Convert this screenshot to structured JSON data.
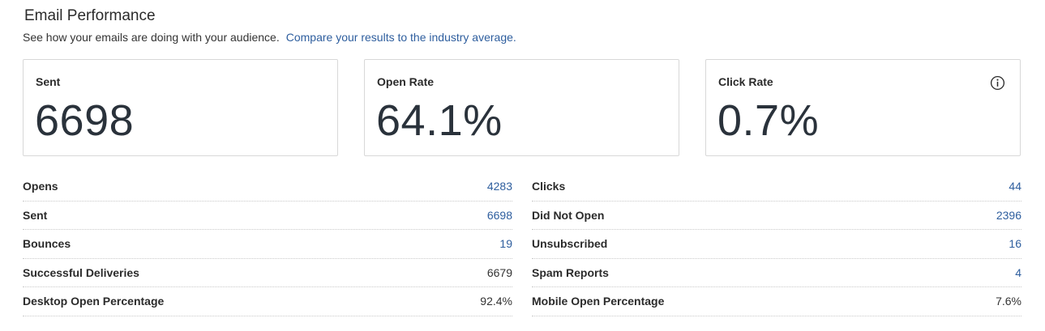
{
  "header": {
    "title": "Email Performance",
    "subtitle": "See how your emails are doing with your audience.",
    "compare_link": "Compare your results to the industry average."
  },
  "cards": [
    {
      "label": "Sent",
      "value": "6698"
    },
    {
      "label": "Open Rate",
      "value": "64.1%"
    },
    {
      "label": "Click Rate",
      "value": "0.7%",
      "icon": "info-icon"
    }
  ],
  "stats_left": [
    {
      "label": "Opens",
      "value": "4283",
      "link": true
    },
    {
      "label": "Sent",
      "value": "6698",
      "link": true
    },
    {
      "label": "Bounces",
      "value": "19",
      "link": true
    },
    {
      "label": "Successful Deliveries",
      "value": "6679",
      "link": false
    },
    {
      "label": "Desktop Open Percentage",
      "value": "92.4%",
      "link": false
    }
  ],
  "stats_right": [
    {
      "label": "Clicks",
      "value": "44",
      "link": true
    },
    {
      "label": "Did Not Open",
      "value": "2396",
      "link": true
    },
    {
      "label": "Unsubscribed",
      "value": "16",
      "link": true
    },
    {
      "label": "Spam Reports",
      "value": "4",
      "link": true
    },
    {
      "label": "Mobile Open Percentage",
      "value": "7.6%",
      "link": false
    }
  ],
  "colors": {
    "link": "#2e5e9e",
    "text": "#2b2b2b",
    "border": "#d8d8d8"
  }
}
